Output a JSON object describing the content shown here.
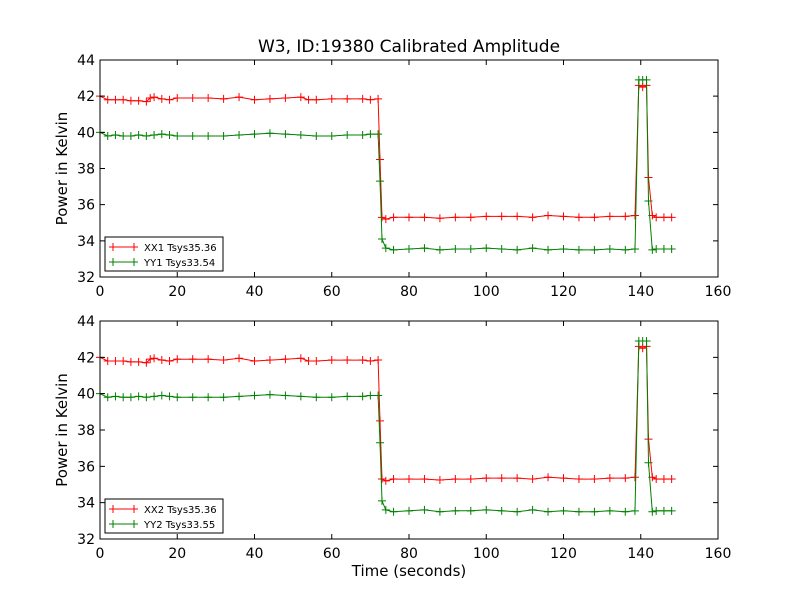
{
  "chart_data": [
    {
      "type": "line",
      "title": "W3, ID:19380 Calibrated Amplitude",
      "xlabel": "",
      "ylabel": "Power in Kelvin",
      "xlim": [
        0,
        160
      ],
      "ylim": [
        32,
        44
      ],
      "xticks": [
        0,
        20,
        40,
        60,
        80,
        100,
        120,
        140,
        160
      ],
      "yticks": [
        32,
        34,
        36,
        38,
        40,
        42,
        44
      ],
      "grid": false,
      "legend_position": "lower-left",
      "series": [
        {
          "name": "XX1 Tsys35.36",
          "color": "#ff0000",
          "marker": "+",
          "x": [
            0,
            2,
            4,
            6,
            8,
            10,
            12,
            13,
            14,
            16,
            18,
            20,
            24,
            28,
            32,
            36,
            40,
            44,
            48,
            52,
            54,
            56,
            60,
            64,
            68,
            70,
            72,
            72.5,
            73,
            74,
            76,
            80,
            84,
            88,
            92,
            96,
            100,
            104,
            108,
            112,
            116,
            120,
            124,
            128,
            132,
            136,
            138.5,
            139.5,
            140.5,
            141.5,
            142,
            143,
            144,
            146,
            148
          ],
          "y": [
            42.0,
            41.8,
            41.8,
            41.8,
            41.75,
            41.75,
            41.7,
            41.9,
            41.95,
            41.85,
            41.8,
            41.9,
            41.9,
            41.9,
            41.85,
            41.95,
            41.8,
            41.85,
            41.9,
            41.95,
            41.8,
            41.8,
            41.85,
            41.85,
            41.85,
            41.8,
            41.85,
            38.5,
            35.3,
            35.2,
            35.3,
            35.3,
            35.3,
            35.25,
            35.3,
            35.3,
            35.35,
            35.35,
            35.35,
            35.3,
            35.4,
            35.35,
            35.3,
            35.3,
            35.35,
            35.35,
            35.4,
            42.6,
            42.5,
            42.6,
            37.5,
            35.4,
            35.3,
            35.3,
            35.3
          ]
        },
        {
          "name": "YY1 Tsys33.54",
          "color": "#008000",
          "marker": "+",
          "x": [
            0,
            2,
            4,
            6,
            8,
            10,
            12,
            14,
            16,
            18,
            20,
            24,
            28,
            32,
            36,
            40,
            44,
            48,
            52,
            56,
            60,
            64,
            68,
            70,
            72,
            72.5,
            73,
            74,
            76,
            80,
            84,
            88,
            92,
            96,
            100,
            104,
            108,
            112,
            116,
            120,
            124,
            128,
            132,
            136,
            138.5,
            139.5,
            140.5,
            141.5,
            142,
            143,
            144,
            146,
            148
          ],
          "y": [
            40.0,
            39.8,
            39.85,
            39.8,
            39.8,
            39.85,
            39.8,
            39.85,
            39.9,
            39.85,
            39.8,
            39.8,
            39.8,
            39.8,
            39.85,
            39.9,
            39.95,
            39.9,
            39.85,
            39.8,
            39.8,
            39.85,
            39.85,
            39.9,
            39.9,
            37.3,
            34.1,
            33.6,
            33.5,
            33.55,
            33.6,
            33.5,
            33.55,
            33.55,
            33.6,
            33.55,
            33.5,
            33.6,
            33.5,
            33.55,
            33.5,
            33.5,
            33.55,
            33.5,
            33.55,
            42.9,
            42.9,
            42.9,
            36.2,
            33.5,
            33.55,
            33.55,
            33.55
          ]
        }
      ]
    },
    {
      "type": "line",
      "title": "",
      "xlabel": "Time (seconds)",
      "ylabel": "Power in Kelvin",
      "xlim": [
        0,
        160
      ],
      "ylim": [
        32,
        44
      ],
      "xticks": [
        0,
        20,
        40,
        60,
        80,
        100,
        120,
        140,
        160
      ],
      "yticks": [
        32,
        34,
        36,
        38,
        40,
        42,
        44
      ],
      "grid": false,
      "legend_position": "lower-left",
      "series": [
        {
          "name": "XX2 Tsys35.36",
          "color": "#ff0000",
          "marker": "+",
          "x": [
            0,
            2,
            4,
            6,
            8,
            10,
            12,
            13,
            14,
            16,
            18,
            20,
            24,
            28,
            32,
            36,
            40,
            44,
            48,
            52,
            54,
            56,
            60,
            64,
            68,
            70,
            72,
            72.5,
            73,
            74,
            76,
            80,
            84,
            88,
            92,
            96,
            100,
            104,
            108,
            112,
            116,
            120,
            124,
            128,
            132,
            136,
            138.5,
            139.5,
            140.5,
            141.5,
            142,
            143,
            144,
            146,
            148
          ],
          "y": [
            42.0,
            41.8,
            41.8,
            41.8,
            41.75,
            41.75,
            41.7,
            41.9,
            41.95,
            41.85,
            41.8,
            41.9,
            41.9,
            41.9,
            41.85,
            41.95,
            41.8,
            41.85,
            41.9,
            41.95,
            41.8,
            41.8,
            41.85,
            41.85,
            41.85,
            41.8,
            41.85,
            38.5,
            35.3,
            35.2,
            35.3,
            35.3,
            35.3,
            35.25,
            35.3,
            35.3,
            35.35,
            35.35,
            35.35,
            35.3,
            35.4,
            35.35,
            35.3,
            35.3,
            35.35,
            35.35,
            35.4,
            42.6,
            42.5,
            42.6,
            37.5,
            35.4,
            35.3,
            35.3,
            35.3
          ]
        },
        {
          "name": "YY2 Tsys33.55",
          "color": "#008000",
          "marker": "+",
          "x": [
            0,
            2,
            4,
            6,
            8,
            10,
            12,
            14,
            16,
            18,
            20,
            24,
            28,
            32,
            36,
            40,
            44,
            48,
            52,
            56,
            60,
            64,
            68,
            70,
            72,
            72.5,
            73,
            74,
            76,
            80,
            84,
            88,
            92,
            96,
            100,
            104,
            108,
            112,
            116,
            120,
            124,
            128,
            132,
            136,
            138.5,
            139.5,
            140.5,
            141.5,
            142,
            143,
            144,
            146,
            148
          ],
          "y": [
            40.0,
            39.8,
            39.85,
            39.8,
            39.8,
            39.85,
            39.8,
            39.85,
            39.9,
            39.85,
            39.8,
            39.8,
            39.8,
            39.8,
            39.85,
            39.9,
            39.95,
            39.9,
            39.85,
            39.8,
            39.8,
            39.85,
            39.85,
            39.9,
            39.9,
            37.3,
            34.1,
            33.6,
            33.5,
            33.55,
            33.6,
            33.5,
            33.55,
            33.55,
            33.6,
            33.55,
            33.5,
            33.6,
            33.5,
            33.55,
            33.5,
            33.5,
            33.55,
            33.5,
            33.55,
            42.9,
            42.9,
            42.9,
            36.2,
            33.5,
            33.55,
            33.55,
            33.55
          ]
        }
      ]
    }
  ]
}
